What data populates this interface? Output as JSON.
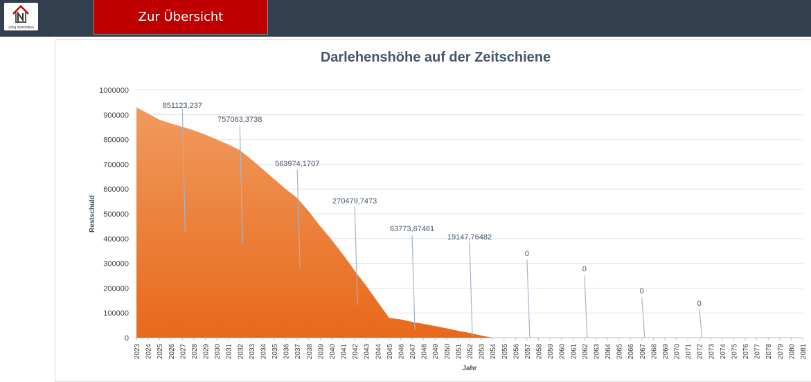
{
  "header": {
    "logo": {
      "icon": "house-logo-icon",
      "brand_text": "Zefaj Immobilien"
    },
    "nav_button_label": "Zur Übersicht"
  },
  "colors": {
    "header_bg": "#323f4f",
    "nav_button": "#c00000",
    "area_fill_top": "#f09a5e",
    "area_fill_bottom": "#e8691a",
    "title": "#44546a",
    "leader_line": "#a6b4c8"
  },
  "chart_data": {
    "type": "area",
    "title": "Darlehenshöhe auf der Zeitschiene",
    "xlabel": "Jahr",
    "ylabel": "Restschuld",
    "ylim": [
      0,
      1000000
    ],
    "yticks": [
      "0",
      "100000",
      "200000",
      "300000",
      "400000",
      "500000",
      "600000",
      "700000",
      "800000",
      "900000",
      "1000000"
    ],
    "grid": true,
    "x": [
      "2023",
      "2024",
      "2025",
      "2026",
      "2027",
      "2028",
      "2029",
      "2030",
      "2031",
      "2032",
      "2033",
      "2034",
      "2035",
      "2036",
      "2037",
      "2038",
      "2039",
      "2040",
      "2041",
      "2042",
      "2043",
      "2044",
      "2045",
      "2046",
      "2047",
      "2048",
      "2049",
      "2050",
      "2051",
      "2052",
      "2053",
      "2054",
      "2055",
      "2056",
      "2057",
      "2058",
      "2059",
      "2060",
      "2061",
      "2062",
      "2063",
      "2064",
      "2065",
      "2066",
      "2067",
      "2068",
      "2069",
      "2070",
      "2071",
      "2072",
      "2073",
      "2074",
      "2075",
      "2076",
      "2077",
      "2078",
      "2079",
      "2080",
      "2081"
    ],
    "series": [
      {
        "values": [
          930000,
          905000,
          880000,
          865000,
          851123,
          837000,
          820000,
          800000,
          780000,
          757063,
          720000,
          680000,
          640000,
          600000,
          563974,
          510000,
          450000,
          395000,
          335000,
          270480,
          210000,
          145000,
          80000,
          74000,
          63774,
          56000,
          47000,
          38000,
          28000,
          19148,
          9000,
          0,
          0,
          0,
          0,
          0,
          0,
          0,
          0,
          0,
          0,
          0,
          0,
          0,
          0,
          0,
          0,
          0,
          0,
          0,
          0,
          0,
          0,
          0,
          0,
          0,
          0,
          0,
          0
        ]
      }
    ],
    "annotations": [
      {
        "x": "2027",
        "label": "851123,237"
      },
      {
        "x": "2032",
        "label": "757063,3738"
      },
      {
        "x": "2037",
        "label": "563974,1707"
      },
      {
        "x": "2042",
        "label": "270479,7473"
      },
      {
        "x": "2047",
        "label": "63773,67461"
      },
      {
        "x": "2052",
        "label": "19147,76482"
      },
      {
        "x": "2057",
        "label": "0"
      },
      {
        "x": "2062",
        "label": "0"
      },
      {
        "x": "2067",
        "label": "0"
      },
      {
        "x": "2072",
        "label": "0"
      }
    ]
  }
}
